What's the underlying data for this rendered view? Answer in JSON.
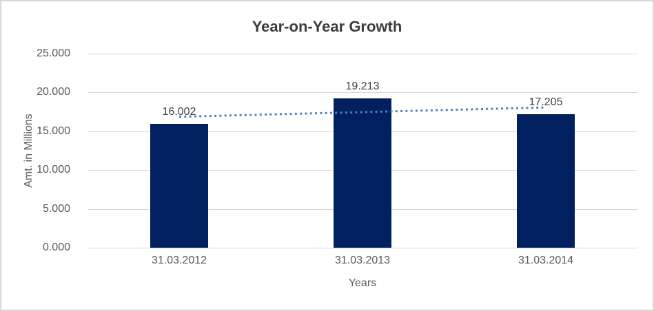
{
  "chart_data": {
    "type": "bar",
    "title": "Year-on-Year Growth",
    "categories": [
      "31.03.2012",
      "31.03.2013",
      "31.03.2014"
    ],
    "values": [
      16.002,
      19.213,
      17.205
    ],
    "data_labels": [
      "16.002",
      "19.213",
      "17.205"
    ],
    "xlabel": "Years",
    "ylabel": "Amt. in Millions",
    "ylim": [
      0,
      25
    ],
    "yticks": [
      "25.000",
      "20.000",
      "15.000",
      "10.000",
      "5.000",
      "0.000"
    ],
    "grid": "horizontal",
    "legend": "none",
    "bar_color": "#002060",
    "trendline": {
      "type": "linear",
      "style": "dotted",
      "color": "#4e82c6",
      "fit_values": [
        16.87,
        17.47,
        18.07
      ]
    },
    "colors": {
      "gridline": "#d9d9d9",
      "title_text": "#3b3b3b",
      "tick_text": "#595959",
      "data_label_text": "#404040",
      "border": "#d7d7d7",
      "background": "#ffffff"
    }
  }
}
